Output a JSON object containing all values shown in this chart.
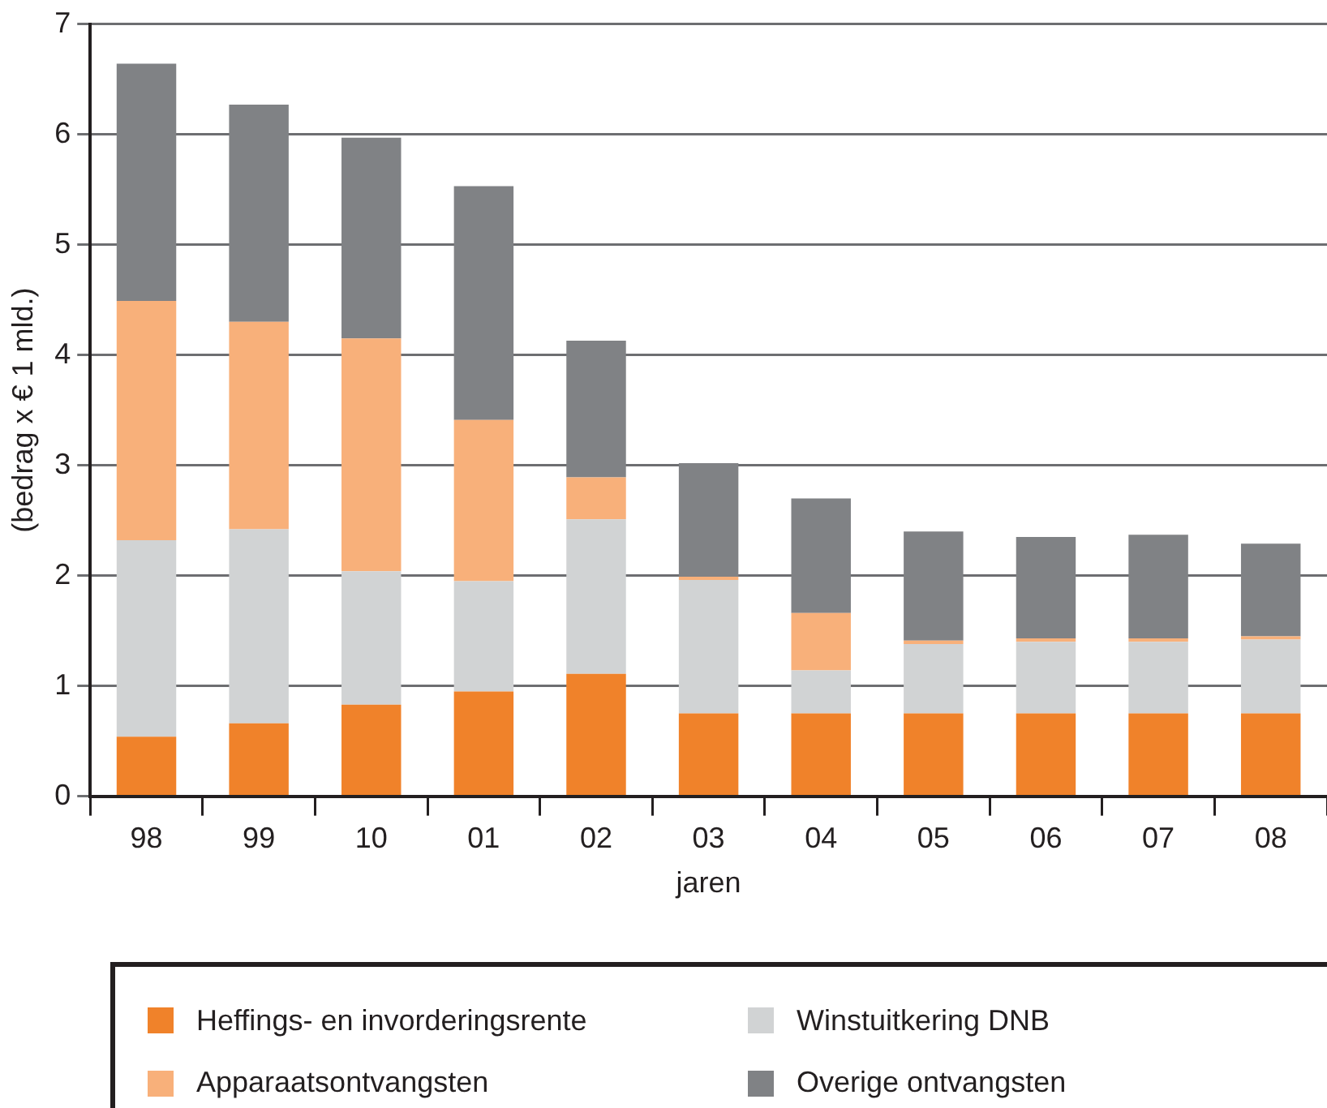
{
  "chart_data": {
    "type": "bar",
    "stacked": true,
    "xlabel": "jaren",
    "ylabel": "(bedrag x € 1 mld.)",
    "categories": [
      "98",
      "99",
      "10",
      "01",
      "02",
      "03",
      "04",
      "05",
      "06",
      "07",
      "08"
    ],
    "series": [
      {
        "name": "Heffings- en invorderingsrente",
        "color": "#f0822a",
        "values": [
          0.54,
          0.66,
          0.83,
          0.95,
          1.11,
          0.75,
          0.75,
          0.75,
          0.75,
          0.75,
          0.75
        ]
      },
      {
        "name": "Winstuitkering DNB",
        "color": "#d1d3d4",
        "values": [
          1.78,
          1.76,
          1.21,
          1.0,
          1.4,
          1.21,
          0.39,
          0.63,
          0.65,
          0.65,
          0.67
        ]
      },
      {
        "name": "Apparaatsontvangsten",
        "color": "#f8b07a",
        "values": [
          2.17,
          1.88,
          2.11,
          1.46,
          0.38,
          0.03,
          0.52,
          0.03,
          0.03,
          0.03,
          0.03
        ]
      },
      {
        "name": "Overige ontvangsten",
        "color": "#808285",
        "values": [
          2.15,
          1.97,
          1.82,
          2.12,
          1.24,
          1.03,
          1.04,
          0.99,
          0.92,
          0.94,
          0.84
        ]
      }
    ],
    "ylim": [
      0,
      7
    ],
    "yticks": [
      0,
      1,
      2,
      3,
      4,
      5,
      6,
      7
    ],
    "grid": "y",
    "legend": "bottom"
  }
}
